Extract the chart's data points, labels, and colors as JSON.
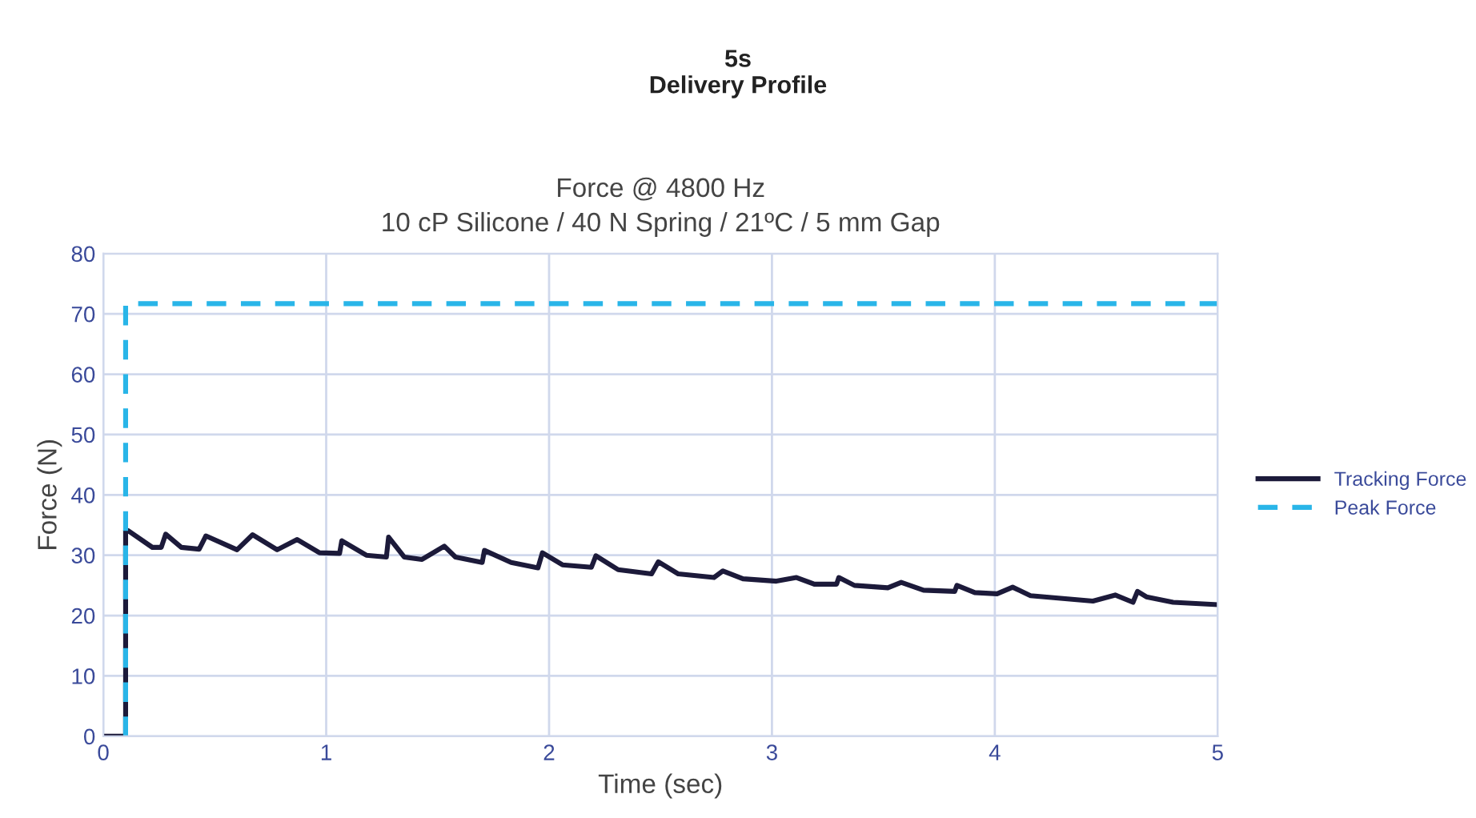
{
  "chart_data": {
    "type": "line",
    "title": "5s\nDelivery Profile",
    "subtitle": "Force @ 4800 Hz\n10 cP Silicone / 40 N Spring / 21ºC / 5 mm Gap",
    "xlabel": "Time (sec)",
    "ylabel": "Force (N)",
    "xlim": [
      0,
      5
    ],
    "ylim": [
      0,
      80
    ],
    "xticks": [
      0,
      1,
      2,
      3,
      4,
      5
    ],
    "yticks": [
      0,
      10,
      20,
      30,
      40,
      50,
      60,
      70,
      80
    ],
    "grid": true,
    "legend": "right",
    "line_style": "solid",
    "marker": "none",
    "series": [
      {
        "name": "Tracking Force",
        "color": "#1c1a3a",
        "x": [
          0,
          0.1,
          0.1,
          0.11,
          0.22,
          0.26,
          0.28,
          0.35,
          0.43,
          0.46,
          0.6,
          0.67,
          0.78,
          0.87,
          0.97,
          1.06,
          1.07,
          1.18,
          1.27,
          1.28,
          1.35,
          1.43,
          1.53,
          1.58,
          1.7,
          1.71,
          1.83,
          1.95,
          1.97,
          2.06,
          2.19,
          2.21,
          2.31,
          2.46,
          2.49,
          2.58,
          2.74,
          2.78,
          2.87,
          3.02,
          3.11,
          3.19,
          3.29,
          3.3,
          3.37,
          3.52,
          3.58,
          3.68,
          3.82,
          3.83,
          3.91,
          4.01,
          4.08,
          4.16,
          4.44,
          4.54,
          4.62,
          4.64,
          4.68,
          4.8,
          5.0
        ],
        "values": [
          0,
          0,
          34.1,
          34.1,
          31.3,
          31.3,
          33.5,
          31.3,
          31.0,
          33.2,
          30.9,
          33.4,
          30.9,
          32.6,
          30.4,
          30.3,
          32.4,
          30.0,
          29.7,
          33.0,
          29.7,
          29.3,
          31.5,
          29.7,
          28.8,
          30.8,
          28.8,
          27.9,
          30.4,
          28.4,
          28.0,
          29.9,
          27.6,
          26.9,
          28.9,
          26.9,
          26.3,
          27.4,
          26.1,
          25.7,
          26.3,
          25.2,
          25.2,
          26.3,
          25.0,
          24.6,
          25.5,
          24.2,
          24.0,
          25.0,
          23.8,
          23.6,
          24.7,
          23.3,
          22.4,
          23.4,
          22.2,
          24.0,
          23.1,
          22.2,
          21.8
        ]
      },
      {
        "name": "Peak Force",
        "color": "#29b5e8",
        "line_style": "dashed",
        "x": [
          0.1,
          0.1,
          5
        ],
        "values": [
          0,
          71.7,
          71.7
        ]
      }
    ]
  }
}
